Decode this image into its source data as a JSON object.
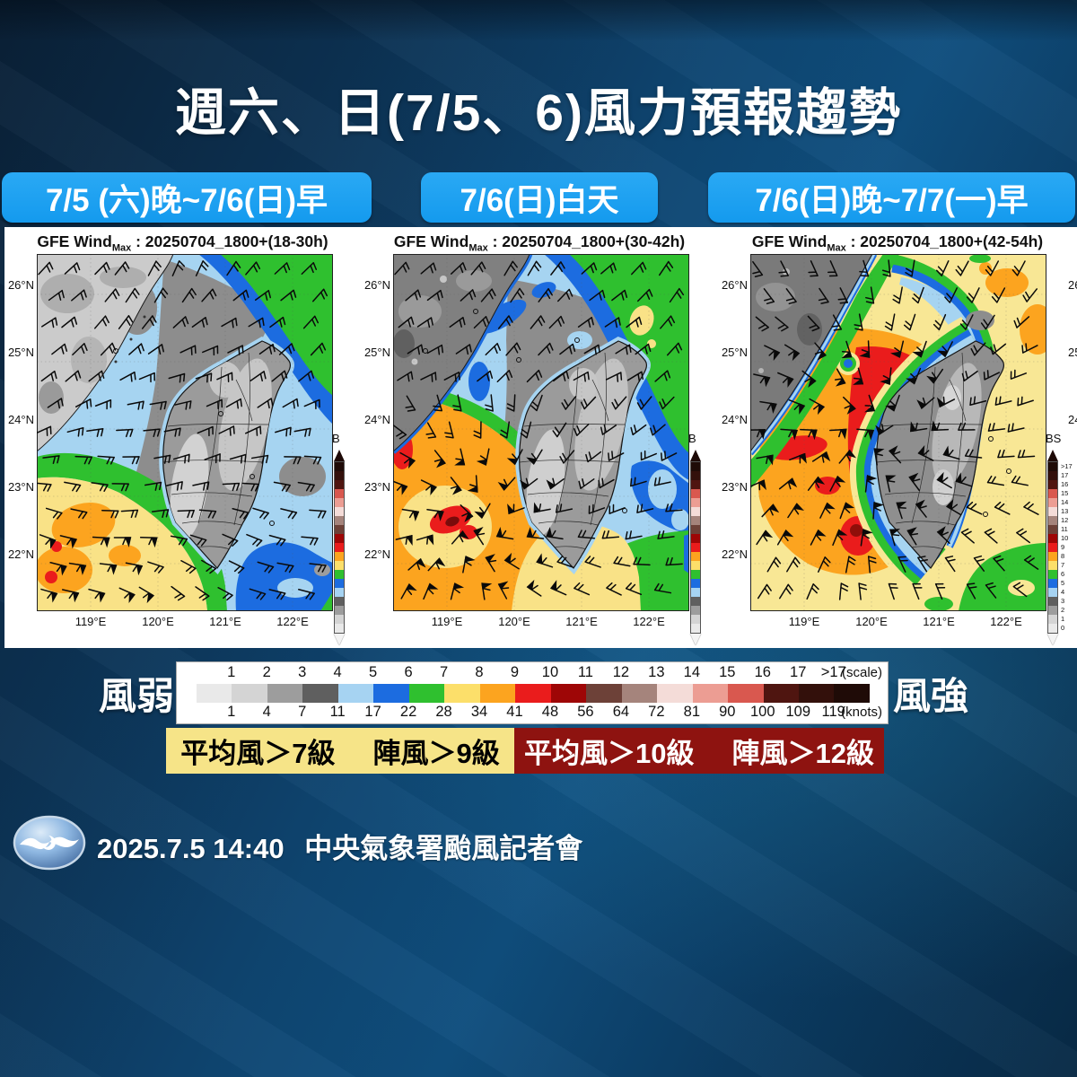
{
  "title": "週六、日(7/5、6)風力預報趨勢",
  "buttons": [
    {
      "label": "7/5 (六)晚~7/6(日)早"
    },
    {
      "label": "7/6(日)白天"
    },
    {
      "label": "7/6(日)晚~7/7(一)早"
    }
  ],
  "maps": {
    "title_prefix": "GFE Wind",
    "title_sub": "Max",
    "items": [
      {
        "title_rest": " : 20250704_1800+(18-30h)"
      },
      {
        "title_rest": " : 20250704_1800+(30-42h)"
      },
      {
        "title_rest": " : 20250704_1800+(42-54h)"
      }
    ],
    "yticks": [
      "26°N",
      "25°N",
      "24°N",
      "23°N",
      "22°N"
    ],
    "xticks": [
      "119°E",
      "120°E",
      "121°E",
      "122°E"
    ],
    "colorbar_label_short": "B",
    "colorbar_label": "BS",
    "colorbar_ticks": [
      ">17",
      "17",
      "16",
      "15",
      "14",
      "13",
      "12",
      "11",
      "10",
      "9",
      "8",
      "7",
      "6",
      "5",
      "4",
      "3",
      "2",
      "1",
      "0"
    ]
  },
  "legend": {
    "weak": "風弱",
    "strong": "風強",
    "scale_caption": "(scale)",
    "knots_caption": "(knots)",
    "scale": [
      "1",
      "2",
      "3",
      "4",
      "5",
      "6",
      "7",
      "8",
      "9",
      "10",
      "11",
      "12",
      "13",
      "14",
      "15",
      "16",
      "17",
      ">17"
    ],
    "knots": [
      "1",
      "4",
      "7",
      "11",
      "17",
      "22",
      "28",
      "34",
      "41",
      "48",
      "56",
      "64",
      "72",
      "81",
      "90",
      "100",
      "109",
      "119"
    ],
    "colors": [
      "#e9e9e9",
      "#d4d4d4",
      "#9d9d9d",
      "#5f5f5f",
      "#a6d3f2",
      "#1c6ce0",
      "#2fc02f",
      "#fcdf6a",
      "#fca41f",
      "#ea1c1c",
      "#9e0606",
      "#6d4138",
      "#a5847c",
      "#f4dcd8",
      "#ec9d93",
      "#d9584f",
      "#4f1510",
      "#33100b",
      "#1f0b07"
    ]
  },
  "warnings": [
    {
      "avg": "平均風＞7級",
      "gust": "陣風＞9級",
      "bg": "#f6e488",
      "fg": "#000000"
    },
    {
      "avg": "平均風＞10級",
      "gust": "陣風＞12級",
      "bg": "#8e1310",
      "fg": "#ffffff"
    }
  ],
  "footer": {
    "datetime": "2025.7.5  14:40",
    "event": "中央氣象署颱風記者會"
  }
}
